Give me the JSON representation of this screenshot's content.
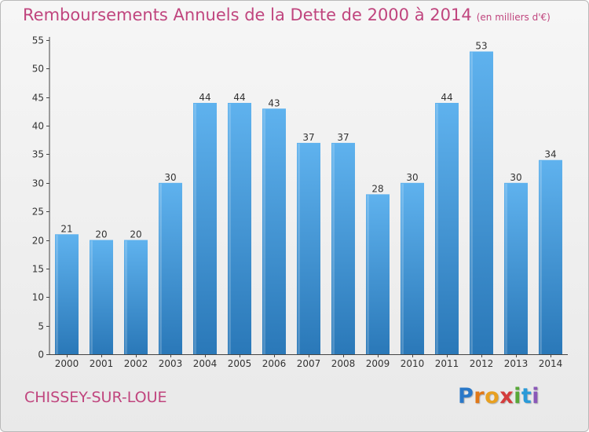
{
  "header": {
    "title": "Remboursements Annuels de la Dette de 2000 à 2014",
    "unit": "(en milliers d'€)"
  },
  "footer": {
    "commune": "CHISSEY-SUR-LOUE",
    "logo_letters": [
      "P",
      "r",
      "o",
      "x",
      "i",
      "t",
      "i"
    ]
  },
  "colors": {
    "title": "#c0457e",
    "bar_top": "#5fb2ee",
    "bar_bottom": "#2a78b8",
    "logo": [
      "#2a78c8",
      "#e07818",
      "#e8a020",
      "#d43c3c",
      "#58a838",
      "#2a9ad8",
      "#8a58b8"
    ]
  },
  "chart_data": {
    "type": "bar",
    "title": "Remboursements Annuels de la Dette de 2000 à 2014",
    "xlabel": "",
    "ylabel": "",
    "categories": [
      "2000",
      "2001",
      "2002",
      "2003",
      "2004",
      "2005",
      "2006",
      "2007",
      "2008",
      "2009",
      "2010",
      "2011",
      "2012",
      "2013",
      "2014"
    ],
    "values": [
      21,
      20,
      20,
      30,
      44,
      44,
      43,
      37,
      37,
      28,
      30,
      44,
      53,
      30,
      34
    ],
    "ylim": [
      0,
      55
    ],
    "yticks": [
      0,
      5,
      10,
      15,
      20,
      25,
      30,
      35,
      40,
      45,
      50,
      55
    ],
    "grid": false,
    "value_labels": true
  }
}
